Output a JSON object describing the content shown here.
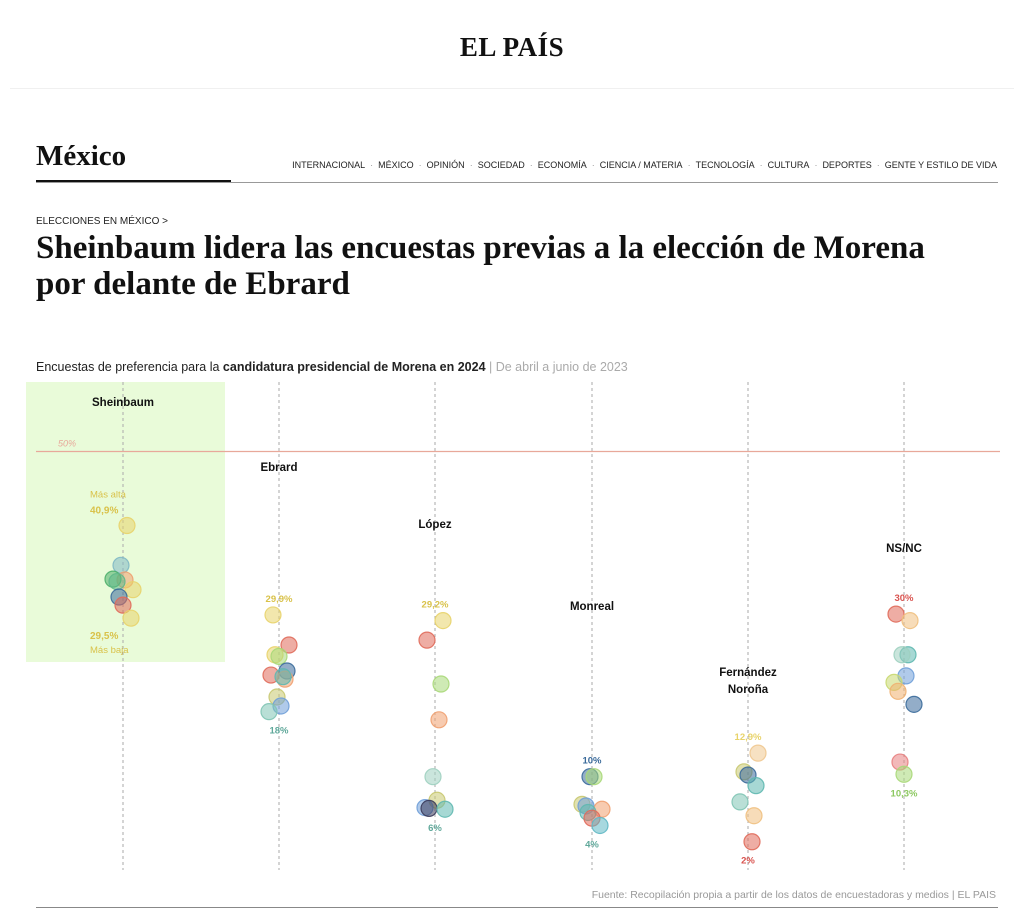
{
  "header": {
    "logo": "EL PAÍS"
  },
  "section": {
    "title": "México"
  },
  "nav": {
    "items": [
      "INTERNACIONAL",
      "MÉXICO",
      "OPINIÓN",
      "SOCIEDAD",
      "ECONOMÍA",
      "CIENCIA / MATERIA",
      "TECNOLOGÍA",
      "CULTURA",
      "DEPORTES",
      "GENTE Y ESTILO DE VIDA"
    ]
  },
  "article": {
    "kicker": "ELECCIONES EN MÉXICO >",
    "headline": "Sheinbaum lidera las encuestas previas a la elección de Morena por delante de Ebrard"
  },
  "chart_data": {
    "type": "scatter",
    "title_prefix": "Encuestas de preferencia para la ",
    "title_bold": "candidatura presidencial de Morena en 2024",
    "title_suffix": " | De abril a junio de 2023",
    "ylim": [
      0,
      50
    ],
    "reference_line": {
      "value": 50,
      "label": "50%",
      "color": "#e8a89a"
    },
    "highlight_color": "#e9fbd9",
    "candidates": [
      {
        "name": "Sheinbaum",
        "max_label": "40,9%",
        "max_note": "Más alta",
        "min_label": "29,5%",
        "min_note": "Más baja",
        "label_color": "#d9c24a",
        "points": [
          [
            40.9,
            "#e8d36a"
          ],
          [
            36.0,
            "#7fb8c4"
          ],
          [
            34.2,
            "#f0a070"
          ],
          [
            34.3,
            "#4caf6a"
          ],
          [
            34.0,
            "#5fb88a"
          ],
          [
            33.0,
            "#e8d36a"
          ],
          [
            32.1,
            "#3a6a9a"
          ],
          [
            31.1,
            "#e06a5a"
          ],
          [
            29.5,
            "#e8d36a"
          ]
        ]
      },
      {
        "name": "Ebrard",
        "max_label": "29,9%",
        "min_label": "18%",
        "max_color": "#d9c24a",
        "min_color": "#5fa89a",
        "points": [
          [
            29.9,
            "#e8d36a"
          ],
          [
            26.2,
            "#e06a5a"
          ],
          [
            25.0,
            "#e8d36a"
          ],
          [
            24.8,
            "#a8d878"
          ],
          [
            23.0,
            "#3a6a9a"
          ],
          [
            22.5,
            "#e06a5a"
          ],
          [
            22.0,
            "#f0a070"
          ],
          [
            22.3,
            "#5fb8b0"
          ],
          [
            19.8,
            "#c8c870"
          ],
          [
            18.7,
            "#6f9fd8"
          ],
          [
            18.0,
            "#7fc4b4"
          ]
        ]
      },
      {
        "name": "López",
        "max_label": "29,2%",
        "min_label": "6%",
        "max_color": "#d9c24a",
        "min_color": "#5fa89a",
        "points": [
          [
            29.2,
            "#e8d36a"
          ],
          [
            26.8,
            "#e06a5a"
          ],
          [
            21.4,
            "#a8d878"
          ],
          [
            17.0,
            "#f0a070"
          ],
          [
            10.0,
            "#9fd0c0"
          ],
          [
            7.1,
            "#c8c870"
          ],
          [
            6.2,
            "#6f9fd8"
          ],
          [
            6.1,
            "#3a3a5a"
          ],
          [
            6.0,
            "#5fb8b0"
          ]
        ]
      },
      {
        "name": "Monreal",
        "max_label": "10%",
        "min_label": "4%",
        "max_color": "#3a6a9a",
        "min_color": "#5fa89a",
        "points": [
          [
            10.0,
            "#3a6a9a"
          ],
          [
            10.0,
            "#a8d878"
          ],
          [
            6.6,
            "#c8c870"
          ],
          [
            6.4,
            "#6f9fd8"
          ],
          [
            6.0,
            "#f0a070"
          ],
          [
            5.6,
            "#5fb8b0"
          ],
          [
            4.9,
            "#e06a5a"
          ],
          [
            4.0,
            "#5fb8c4"
          ]
        ]
      },
      {
        "name": "Fernández Noroña",
        "max_label": "12,9%",
        "min_label": "2%",
        "max_color": "#e8d36a",
        "min_color": "#d9534f",
        "points": [
          [
            12.9,
            "#f0c890"
          ],
          [
            10.6,
            "#c8c870"
          ],
          [
            10.2,
            "#3a6a9a"
          ],
          [
            8.9,
            "#5fb8b0"
          ],
          [
            6.9,
            "#7fc4b4"
          ],
          [
            5.2,
            "#f0c080"
          ],
          [
            2.0,
            "#e06a5a"
          ]
        ]
      },
      {
        "name": "NS/NC",
        "max_label": "30%",
        "min_label": "10,3%",
        "max_color": "#d9534f",
        "min_color": "#8cc860",
        "points": [
          [
            30.0,
            "#e06a5a"
          ],
          [
            29.2,
            "#f0c080"
          ],
          [
            25.0,
            "#5fb8b0"
          ],
          [
            25.0,
            "#9fd0c0"
          ],
          [
            22.4,
            "#6f9fd8"
          ],
          [
            21.6,
            "#c8d870"
          ],
          [
            20.5,
            "#f0b070"
          ],
          [
            18.9,
            "#3a6a9a"
          ],
          [
            11.8,
            "#e88080"
          ],
          [
            10.3,
            "#a8d878"
          ]
        ]
      }
    ]
  },
  "footer": {
    "source": "Fuente: Recopilación propia a partir de los datos de encuestadoras y medios | EL PAIS"
  }
}
